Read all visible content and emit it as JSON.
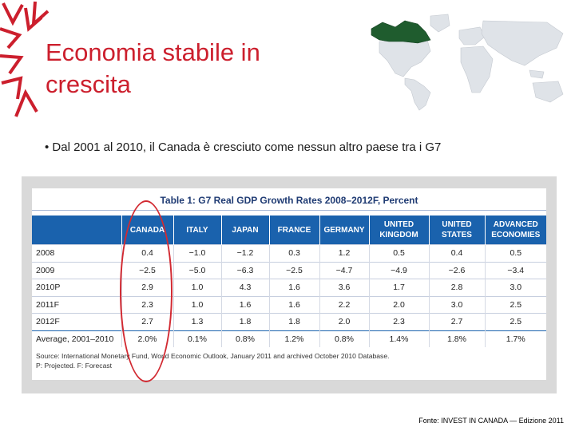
{
  "slide": {
    "title_line1": "Economia stabile in",
    "title_line2": "crescita",
    "bullet": "• Dal 2001 al 2010, il Canada è cresciuto come nessun altro paese tra i G7",
    "footer": "Fonte: INVEST IN CANADA — Edizione 2011"
  },
  "table": {
    "title": "Table 1: G7 Real GDP Growth Rates 2008–2012F, Percent",
    "headers": [
      "",
      "CANADA",
      "ITALY",
      "JAPAN",
      "FRANCE",
      "GERMANY",
      "UNITED KINGDOM",
      "UNITED STATES",
      "ADVANCED ECONOMIES"
    ],
    "rows": [
      [
        "2008",
        "0.4",
        "−1.0",
        "−1.2",
        "0.3",
        "1.2",
        "0.5",
        "0.4",
        "0.5"
      ],
      [
        "2009",
        "−2.5",
        "−5.0",
        "−6.3",
        "−2.5",
        "−4.7",
        "−4.9",
        "−2.6",
        "−3.4"
      ],
      [
        "2010P",
        "2.9",
        "1.0",
        "4.3",
        "1.6",
        "3.6",
        "1.7",
        "2.8",
        "3.0"
      ],
      [
        "2011F",
        "2.3",
        "1.0",
        "1.6",
        "1.6",
        "2.2",
        "2.0",
        "3.0",
        "2.5"
      ],
      [
        "2012F",
        "2.7",
        "1.3",
        "1.8",
        "1.8",
        "2.0",
        "2.3",
        "2.7",
        "2.5"
      ],
      [
        "Average, 2001–2010",
        "2.0%",
        "0.1%",
        "0.8%",
        "1.2%",
        "0.8%",
        "1.4%",
        "1.8%",
        "1.7%"
      ]
    ],
    "source_line1": "Source: International Monetary Fund, World Economic Outlook, January 2011 and archived October 2010 Database.",
    "source_line2": "P: Projected. F: Forecast"
  },
  "colors": {
    "title": "#cc1f2d",
    "header_blue": "#1a62ad",
    "circle_red": "#d22a32",
    "canada_green": "#1f5c2e"
  },
  "icons": [
    "sunburst-logo-icon",
    "world-map-icon"
  ]
}
